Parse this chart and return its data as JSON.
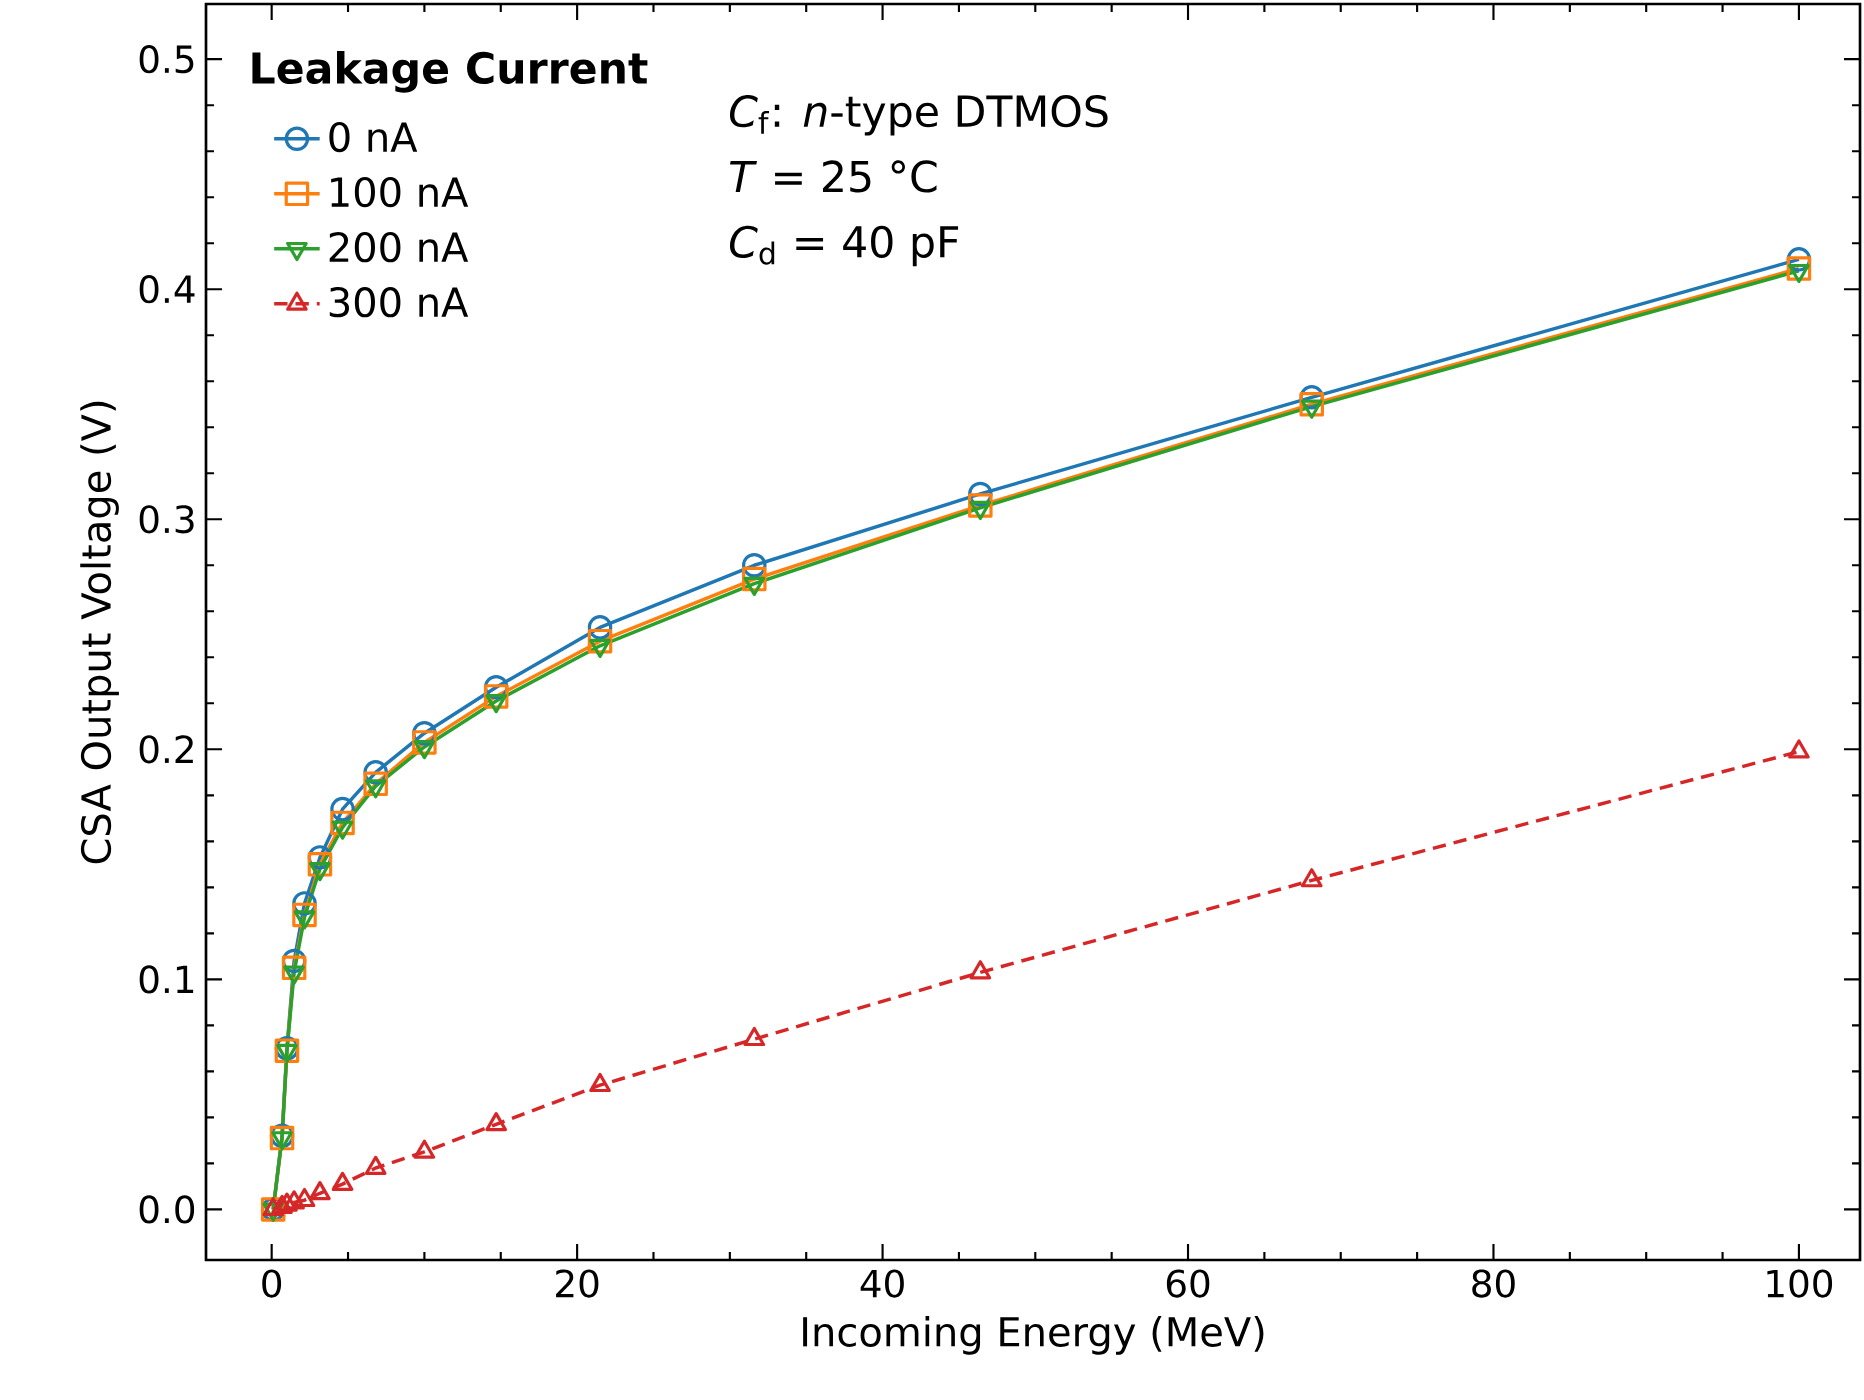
{
  "chart_data": {
    "type": "line",
    "xlabel": "Incoming Energy (MeV)",
    "ylabel": "CSA Output Voltage (V)",
    "legend_title": "Leakage Current",
    "legend": "top left",
    "annotations": [
      "*C*$_{f}$:  *n*-type DTMOS",
      "*T* = 25 °C",
      "*C*$_{d}$ = 40 pF"
    ],
    "x": [
      0.1,
      0.68,
      1,
      1.47,
      2.15,
      3.16,
      4.64,
      6.81,
      10,
      14.7,
      21.5,
      31.6,
      46.4,
      68.1,
      100
    ],
    "series": [
      {
        "name": "0 nA",
        "color": "#1f77b4",
        "marker": "circle",
        "line_style": "solid",
        "values": [
          0,
          0.032,
          0.07,
          0.108,
          0.133,
          0.153,
          0.174,
          0.19,
          0.207,
          0.227,
          0.253,
          0.28,
          0.311,
          0.353,
          0.413
        ]
      },
      {
        "name": "100 nA",
        "color": "#ff7f0e",
        "marker": "square",
        "line_style": "solid",
        "values": [
          0,
          0.031,
          0.069,
          0.105,
          0.128,
          0.15,
          0.168,
          0.185,
          0.203,
          0.223,
          0.247,
          0.274,
          0.306,
          0.35,
          0.409
        ]
      },
      {
        "name": "200 nA",
        "color": "#2ca02c",
        "marker": "triangle-down",
        "line_style": "solid",
        "values": [
          0,
          0.031,
          0.069,
          0.103,
          0.127,
          0.148,
          0.166,
          0.184,
          0.201,
          0.221,
          0.245,
          0.272,
          0.305,
          0.349,
          0.408
        ]
      },
      {
        "name": "300 nA",
        "color": "#d62728",
        "marker": "triangle",
        "line_style": "dashed",
        "values": [
          0,
          0.001,
          0.002,
          0.003,
          0.004,
          0.007,
          0.011,
          0.018,
          0.025,
          0.037,
          0.054,
          0.074,
          0.103,
          0.143,
          0.199
        ]
      }
    ],
    "xlim": [
      -4.3,
      104
    ],
    "ylim": [
      -0.022,
      0.524
    ],
    "xticks": [
      0,
      20,
      40,
      60,
      80,
      100
    ],
    "yticks": [
      {
        "value": 0,
        "label": "0.0"
      },
      {
        "value": 0.1,
        "label": "0.1"
      },
      {
        "value": 0.2,
        "label": "0.2"
      },
      {
        "value": 0.3,
        "label": "0.3"
      },
      {
        "value": 0.4,
        "label": "0.4"
      },
      {
        "value": 0.5,
        "label": "0.5"
      }
    ],
    "grid": false
  }
}
